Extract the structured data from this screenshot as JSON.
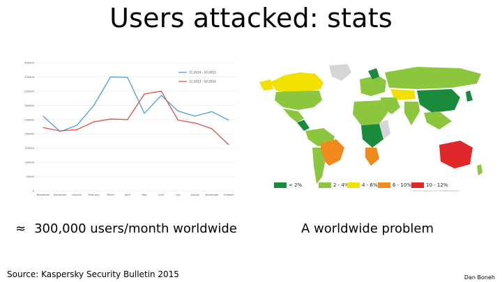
{
  "slide": {
    "title": "Users attacked:  stats",
    "caption_left_symbol": "≈",
    "caption_left": "300,000 users/month worldwide",
    "caption_right": "A worldwide problem",
    "source": "Source: Kaspersky Security Bulletin 2015",
    "author": "Dan Boneh"
  },
  "chart_data": {
    "type": "line",
    "title": "",
    "xlabel": "",
    "ylabel": "",
    "grid": true,
    "legend_position": "top-right",
    "ylim": [
      0,
      450000
    ],
    "y_ticks": [
      "0",
      "50000",
      "100000",
      "150000",
      "200000",
      "250000",
      "300000",
      "350000",
      "400000",
      "450000"
    ],
    "categories": [
      "November",
      "December",
      "January",
      "February",
      "March",
      "April",
      "May",
      "June",
      "July",
      "August",
      "September",
      "October"
    ],
    "series": [
      {
        "name": "11.2014 - 10.2015",
        "color": "#4a9fd5",
        "values": [
          262000,
          208000,
          230000,
          300000,
          400000,
          398000,
          272000,
          335000,
          280000,
          262000,
          278000,
          248000
        ]
      },
      {
        "name": "11.2013 - 10.2014",
        "color": "#e0504a",
        "values": [
          222000,
          210000,
          215000,
          242000,
          252000,
          250000,
          340000,
          350000,
          248000,
          238000,
          218000,
          162000
        ]
      }
    ]
  },
  "map": {
    "legend": [
      {
        "label": "< 2%",
        "color": "#1a8a3c"
      },
      {
        "label": "2 - 4%",
        "color": "#8cc63f"
      },
      {
        "label": "4 - 6%",
        "color": "#f2e000"
      },
      {
        "label": "6 - 10%",
        "color": "#f08a1c"
      },
      {
        "label": "10 - 12%",
        "color": "#e0282a"
      }
    ],
    "credit": "© 2015 AO Kaspersky Lab. All Rights Reserved."
  }
}
